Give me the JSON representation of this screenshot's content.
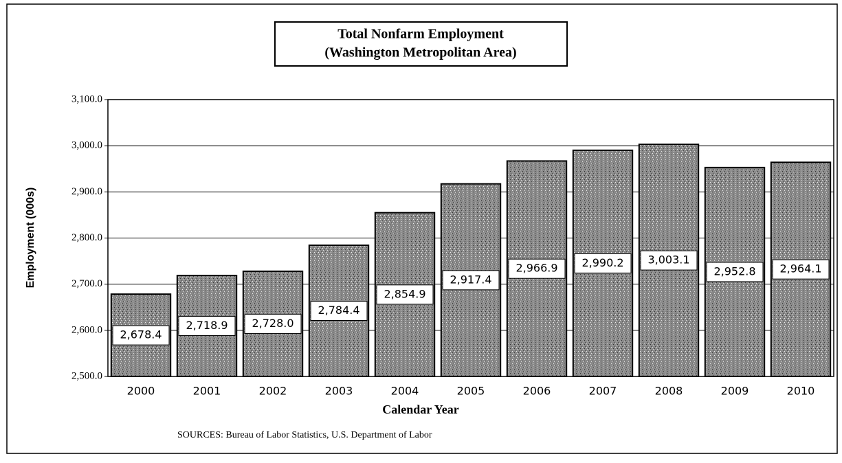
{
  "chart_data": {
    "type": "bar",
    "title": "Total Nonfarm Employment",
    "subtitle": "(Washington Metropolitan Area)",
    "categories": [
      "2000",
      "2001",
      "2002",
      "2003",
      "2004",
      "2005",
      "2006",
      "2007",
      "2008",
      "2009",
      "2010"
    ],
    "values": [
      2678.4,
      2718.9,
      2728.0,
      2784.4,
      2854.9,
      2917.4,
      2966.9,
      2990.2,
      3003.1,
      2952.8,
      2964.1
    ],
    "value_labels": [
      "2,678.4",
      "2,718.9",
      "2,728.0",
      "2,784.4",
      "2,854.9",
      "2,917.4",
      "2,966.9",
      "2,990.2",
      "3,003.1",
      "2,952.8",
      "2,964.1"
    ],
    "color": "#8a8a8a",
    "ylim": [
      2500,
      3100
    ],
    "yticks": [
      {
        "value": 2500,
        "label": "2,500.0"
      },
      {
        "value": 2600,
        "label": "2,600.0"
      },
      {
        "value": 2700,
        "label": "2,700.0"
      },
      {
        "value": 2800,
        "label": "2,800.0"
      },
      {
        "value": 2900,
        "label": "2,900.0"
      },
      {
        "value": 3000,
        "label": "3,000.0"
      },
      {
        "value": 3100,
        "label": "3,100.0"
      }
    ],
    "grid": true,
    "xlabel": "Calendar Year",
    "ylabel": "Employment (000s)",
    "note": "SOURCES:  Bureau of Labor Statistics, U.S. Department of Labor"
  }
}
